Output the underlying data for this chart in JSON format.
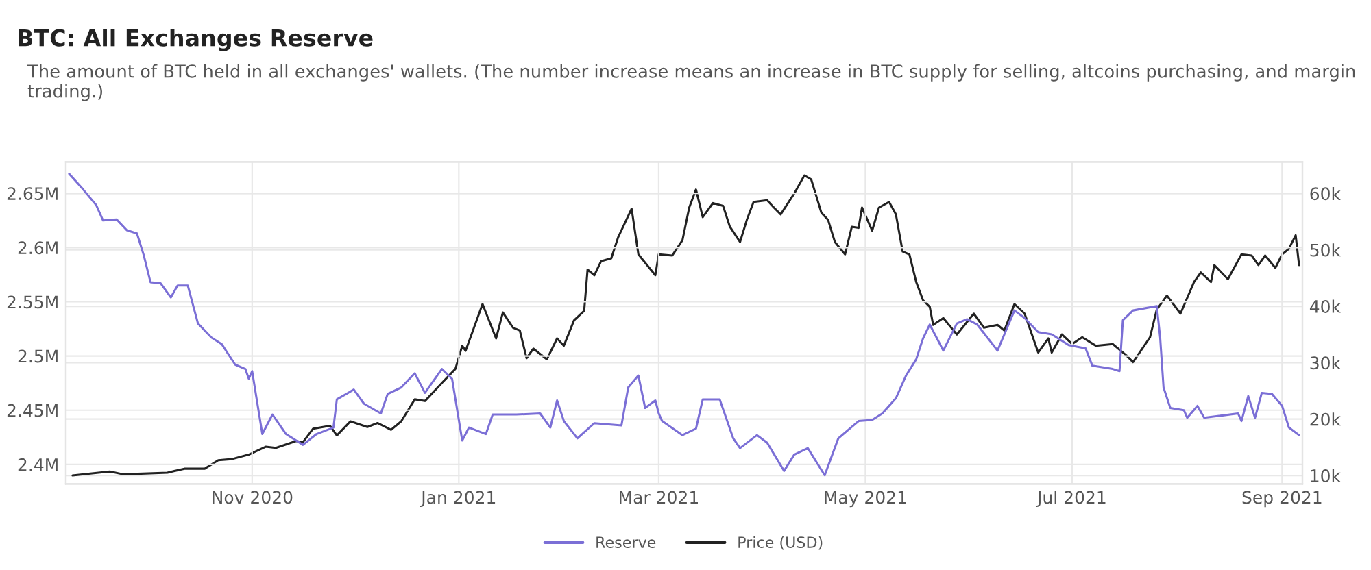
{
  "chart_data": {
    "type": "line",
    "title": "BTC: All Exchanges Reserve",
    "subtitle": "The amount of BTC held in all exchanges' wallets. (The number increase means an increase in BTC supply for selling, altcoins purchasing, and margin trading.)",
    "xlim": [
      "2020-09-07",
      "2021-09-07"
    ],
    "xticks": [
      {
        "value": "2020-11-01",
        "label": "Nov 2020"
      },
      {
        "value": "2021-01-01",
        "label": "Jan 2021"
      },
      {
        "value": "2021-03-01",
        "label": "Mar 2021"
      },
      {
        "value": "2021-05-01",
        "label": "May 2021"
      },
      {
        "value": "2021-07-01",
        "label": "Jul 2021"
      },
      {
        "value": "2021-09-01",
        "label": "Sep 2021"
      }
    ],
    "ylim": [
      2382000,
      2679000
    ],
    "yticks": [
      {
        "value": 2400000,
        "label": "2.4M"
      },
      {
        "value": 2450000,
        "label": "2.45M"
      },
      {
        "value": 2500000,
        "label": "2.5M"
      },
      {
        "value": 2550000,
        "label": "2.55M"
      },
      {
        "value": 2600000,
        "label": "2.6M"
      },
      {
        "value": 2650000,
        "label": "2.65M"
      }
    ],
    "y2lim": [
      8500,
      65600
    ],
    "y2ticks": [
      {
        "value": 10000,
        "label": "10k"
      },
      {
        "value": 20000,
        "label": "20k"
      },
      {
        "value": 30000,
        "label": "30k"
      },
      {
        "value": 40000,
        "label": "40k"
      },
      {
        "value": 50000,
        "label": "50k"
      },
      {
        "value": 60000,
        "label": "60k"
      }
    ],
    "grid": true,
    "legend": "bottom",
    "series": [
      {
        "name": "Reserve",
        "color": "#7b6fd6",
        "x": [
          "2020-09-08",
          "2020-09-12",
          "2020-09-16",
          "2020-09-18",
          "2020-09-22",
          "2020-09-25",
          "2020-09-28",
          "2020-09-30",
          "2020-10-02",
          "2020-10-05",
          "2020-10-08",
          "2020-10-10",
          "2020-10-13",
          "2020-10-16",
          "2020-10-20",
          "2020-10-23",
          "2020-10-27",
          "2020-10-30",
          "2020-10-31",
          "2020-11-01",
          "2020-11-04",
          "2020-11-07",
          "2020-11-11",
          "2020-11-16",
          "2020-11-20",
          "2020-11-25",
          "2020-11-26",
          "2020-12-01",
          "2020-12-04",
          "2020-12-09",
          "2020-12-11",
          "2020-12-15",
          "2020-12-19",
          "2020-12-22",
          "2020-12-27",
          "2020-12-30",
          "2021-01-02",
          "2021-01-04",
          "2021-01-09",
          "2021-01-11",
          "2021-01-18",
          "2021-01-25",
          "2021-01-28",
          "2021-01-30",
          "2021-02-01",
          "2021-02-05",
          "2021-02-10",
          "2021-02-18",
          "2021-02-20",
          "2021-02-23",
          "2021-02-25",
          "2021-02-28",
          "2021-03-01",
          "2021-03-02",
          "2021-03-08",
          "2021-03-12",
          "2021-03-14",
          "2021-03-19",
          "2021-03-23",
          "2021-03-25",
          "2021-03-30",
          "2021-04-02",
          "2021-04-07",
          "2021-04-10",
          "2021-04-14",
          "2021-04-19",
          "2021-04-23",
          "2021-04-29",
          "2021-05-03",
          "2021-05-06",
          "2021-05-10",
          "2021-05-13",
          "2021-05-16",
          "2021-05-18",
          "2021-05-20",
          "2021-05-24",
          "2021-05-28",
          "2021-05-31",
          "2021-06-03",
          "2021-06-09",
          "2021-06-14",
          "2021-06-17",
          "2021-06-21",
          "2021-06-25",
          "2021-06-30",
          "2021-07-05",
          "2021-07-07",
          "2021-07-13",
          "2021-07-15",
          "2021-07-16",
          "2021-07-19",
          "2021-07-26",
          "2021-07-27",
          "2021-07-28",
          "2021-07-30",
          "2021-08-03",
          "2021-08-04",
          "2021-08-07",
          "2021-08-09",
          "2021-08-19",
          "2021-08-20",
          "2021-08-22",
          "2021-08-24",
          "2021-08-26",
          "2021-08-29",
          "2021-09-01",
          "2021-09-03",
          "2021-09-06"
        ],
        "values": [
          2668000,
          2654000,
          2639000,
          2625000,
          2626000,
          2616000,
          2613000,
          2593000,
          2568000,
          2567000,
          2554000,
          2565000,
          2565000,
          2530000,
          2517000,
          2511000,
          2492000,
          2488000,
          2479000,
          2486000,
          2428000,
          2446000,
          2428000,
          2418000,
          2428000,
          2434000,
          2460000,
          2469000,
          2456000,
          2447000,
          2465000,
          2471000,
          2484000,
          2466000,
          2488000,
          2479000,
          2422000,
          2434000,
          2428000,
          2446000,
          2446000,
          2447000,
          2434000,
          2459000,
          2440000,
          2424000,
          2438000,
          2436000,
          2471000,
          2482000,
          2452000,
          2459000,
          2447000,
          2440000,
          2427000,
          2433000,
          2460000,
          2460000,
          2424000,
          2415000,
          2427000,
          2420000,
          2394000,
          2409000,
          2415000,
          2390000,
          2424000,
          2440000,
          2441000,
          2447000,
          2461000,
          2482000,
          2497000,
          2516000,
          2529000,
          2505000,
          2530000,
          2534000,
          2529000,
          2505000,
          2542000,
          2535000,
          2522000,
          2520000,
          2510000,
          2507000,
          2491000,
          2488000,
          2486000,
          2533000,
          2542000,
          2546000,
          2517000,
          2471000,
          2452000,
          2450000,
          2443000,
          2454000,
          2443000,
          2447000,
          2440000,
          2463000,
          2443000,
          2466000,
          2465000,
          2454000,
          2434000,
          2427000
        ]
      },
      {
        "name": "Price (USD)",
        "color": "#222222",
        "axis": "y2",
        "x": [
          "2020-09-09",
          "2020-09-20",
          "2020-09-24",
          "2020-10-07",
          "2020-10-12",
          "2020-10-18",
          "2020-10-22",
          "2020-10-26",
          "2020-10-31",
          "2020-11-05",
          "2020-11-08",
          "2020-11-14",
          "2020-11-16",
          "2020-11-19",
          "2020-11-24",
          "2020-11-26",
          "2020-11-30",
          "2020-12-05",
          "2020-12-08",
          "2020-12-12",
          "2020-12-15",
          "2020-12-19",
          "2020-12-22",
          "2020-12-27",
          "2020-12-31",
          "2021-01-02",
          "2021-01-03",
          "2021-01-08",
          "2021-01-12",
          "2021-01-14",
          "2021-01-17",
          "2021-01-19",
          "2021-01-21",
          "2021-01-23",
          "2021-01-27",
          "2021-01-30",
          "2021-02-01",
          "2021-02-04",
          "2021-02-07",
          "2021-02-08",
          "2021-02-10",
          "2021-02-12",
          "2021-02-15",
          "2021-02-17",
          "2021-02-21",
          "2021-02-23",
          "2021-02-28",
          "2021-03-01",
          "2021-03-05",
          "2021-03-08",
          "2021-03-10",
          "2021-03-12",
          "2021-03-14",
          "2021-03-17",
          "2021-03-20",
          "2021-03-22",
          "2021-03-25",
          "2021-03-27",
          "2021-03-29",
          "2021-04-02",
          "2021-04-04",
          "2021-04-06",
          "2021-04-10",
          "2021-04-13",
          "2021-04-15",
          "2021-04-18",
          "2021-04-20",
          "2021-04-22",
          "2021-04-25",
          "2021-04-27",
          "2021-04-29",
          "2021-04-30",
          "2021-05-03",
          "2021-05-05",
          "2021-05-08",
          "2021-05-10",
          "2021-05-12",
          "2021-05-14",
          "2021-05-16",
          "2021-05-18",
          "2021-05-20",
          "2021-05-21",
          "2021-05-24",
          "2021-05-28",
          "2021-06-02",
          "2021-06-05",
          "2021-06-09",
          "2021-06-11",
          "2021-06-14",
          "2021-06-17",
          "2021-06-21",
          "2021-06-24",
          "2021-06-25",
          "2021-06-28",
          "2021-07-01",
          "2021-07-04",
          "2021-07-08",
          "2021-07-13",
          "2021-07-17",
          "2021-07-19",
          "2021-07-24",
          "2021-07-26",
          "2021-07-29",
          "2021-08-02",
          "2021-08-06",
          "2021-08-08",
          "2021-08-11",
          "2021-08-12",
          "2021-08-16",
          "2021-08-20",
          "2021-08-23",
          "2021-08-25",
          "2021-08-27",
          "2021-08-30",
          "2021-09-01",
          "2021-09-03",
          "2021-09-05",
          "2021-09-06"
        ],
        "values": [
          10000,
          10700,
          10200,
          10500,
          11200,
          11200,
          12700,
          12900,
          13700,
          15100,
          14900,
          16100,
          15900,
          18300,
          18800,
          17100,
          19600,
          18600,
          19300,
          18100,
          19600,
          23500,
          23200,
          26400,
          28900,
          33000,
          32100,
          40400,
          34300,
          38900,
          36200,
          35700,
          30800,
          32500,
          30600,
          34300,
          33000,
          37500,
          39200,
          46500,
          45500,
          48000,
          48500,
          52200,
          57300,
          49200,
          45500,
          49200,
          49000,
          51700,
          57500,
          60700,
          55800,
          58300,
          57800,
          54100,
          51400,
          55300,
          58500,
          58800,
          57500,
          56300,
          60000,
          63200,
          62500,
          56600,
          55300,
          51400,
          49200,
          54100,
          53900,
          57500,
          53400,
          57500,
          58500,
          56300,
          49700,
          49200,
          44300,
          41100,
          39900,
          36700,
          37900,
          35000,
          38700,
          36200,
          36700,
          35700,
          40400,
          38700,
          31800,
          34300,
          31800,
          35000,
          33300,
          34500,
          33000,
          33300,
          31300,
          30100,
          34500,
          39400,
          41900,
          38700,
          44300,
          46000,
          44300,
          47300,
          44800,
          49200,
          49000,
          47300,
          49000,
          46800,
          49200,
          50200,
          52600,
          47300
        ]
      }
    ]
  }
}
